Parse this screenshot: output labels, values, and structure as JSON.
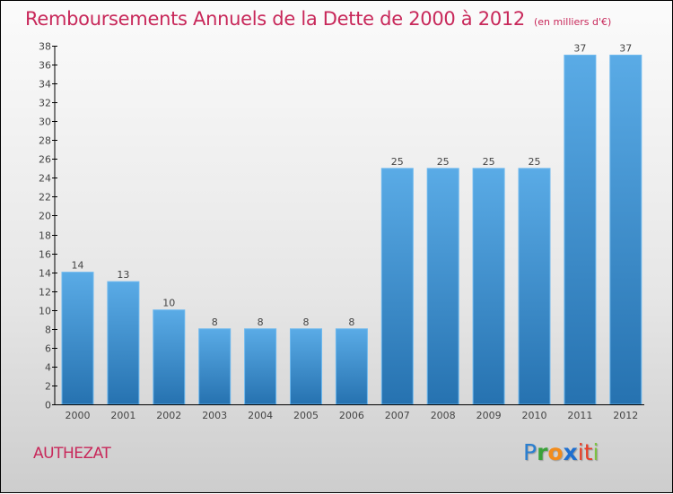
{
  "chart_data": {
    "type": "bar",
    "title": "Remboursements Annuels de la Dette de 2000 à 2012",
    "subtitle": "(en milliers d'€)",
    "xlabel": "",
    "ylabel": "",
    "categories": [
      "2000",
      "2001",
      "2002",
      "2003",
      "2004",
      "2005",
      "2006",
      "2007",
      "2008",
      "2009",
      "2010",
      "2011",
      "2012"
    ],
    "values": [
      14,
      13,
      10,
      8,
      8,
      8,
      8,
      25,
      25,
      25,
      25,
      37,
      37
    ],
    "ylim": [
      0,
      38
    ],
    "yticks": [
      0,
      2,
      4,
      6,
      8,
      10,
      12,
      14,
      16,
      18,
      20,
      22,
      24,
      26,
      28,
      30,
      32,
      34,
      36,
      38
    ],
    "grid": false,
    "bar_color_top": "#5aabe6",
    "bar_color_bottom": "#2672b0",
    "data_labels": true
  },
  "footer": {
    "town": "AUTHEZAT",
    "logo_letters": [
      "P",
      "r",
      "o",
      "x",
      "it",
      "i"
    ]
  }
}
